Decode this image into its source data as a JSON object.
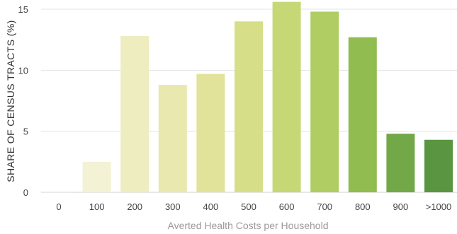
{
  "chart_data": {
    "type": "bar",
    "categories": [
      "0",
      "100",
      "200",
      "300",
      "400",
      "500",
      "600",
      "700",
      "800",
      "900",
      ">1000"
    ],
    "values": [
      0.1,
      2.5,
      12.8,
      8.8,
      9.7,
      14.0,
      15.6,
      14.8,
      12.7,
      4.8,
      4.3
    ],
    "bar_colors": [
      "#f8f7e6",
      "#f4f2d4",
      "#eeedc0",
      "#e9e8ae",
      "#e2e39a",
      "#d6df88",
      "#c5d875",
      "#afcd63",
      "#90bc50",
      "#73a849",
      "#5a9541"
    ],
    "xlabel": "Averted Health Costs per Household",
    "ylabel": "SHARE OF CENSUS TRACTS (%)",
    "yticks": [
      0,
      5,
      10,
      15
    ],
    "ylim": [
      0,
      15.8
    ],
    "grid": true
  }
}
